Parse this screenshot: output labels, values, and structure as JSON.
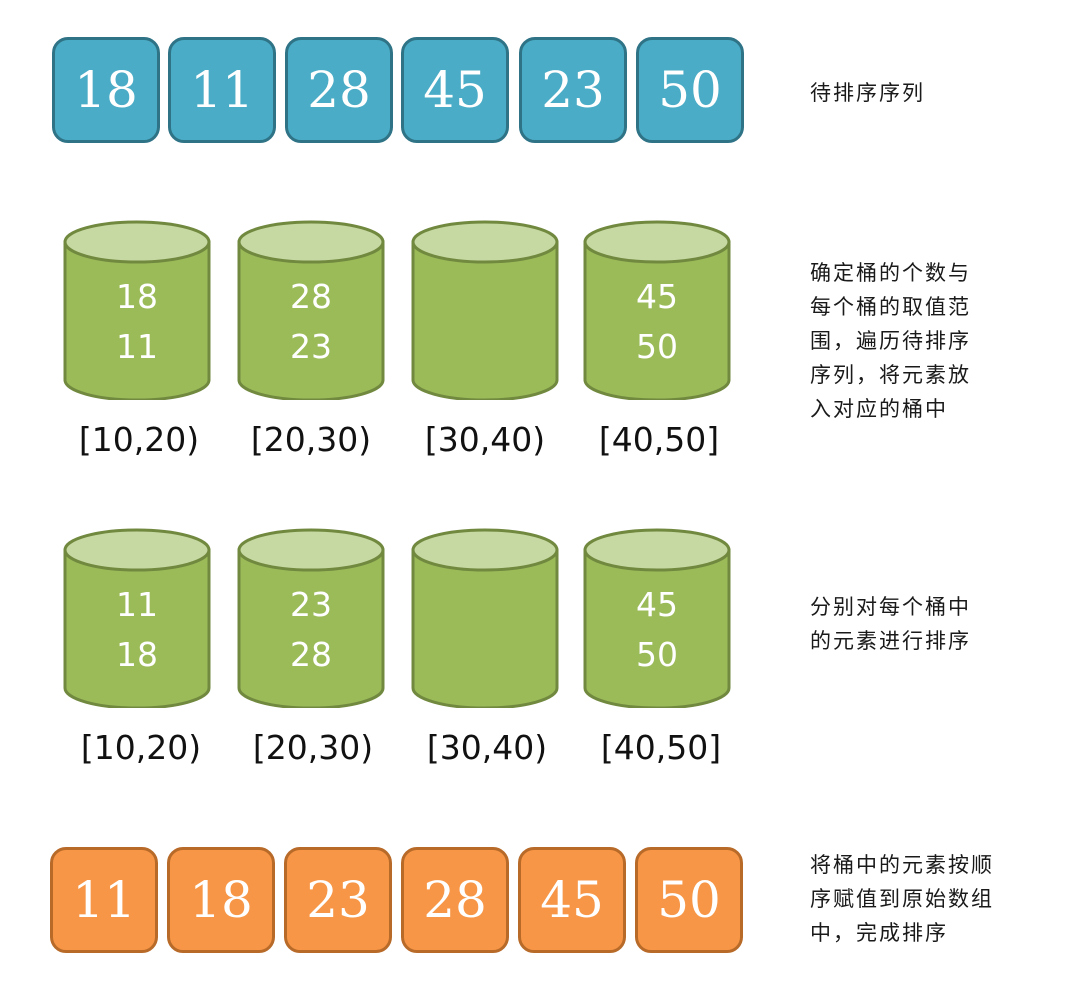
{
  "colors": {
    "input_box_fill": "#4aacc6",
    "input_box_border": "#2f7387",
    "bucket_body": "#9bbb59",
    "bucket_top": "#c6d9a3",
    "bucket_border": "#71893f",
    "output_box_fill": "#f79646",
    "output_box_border": "#b86a29"
  },
  "input_sequence": {
    "values": [
      "18",
      "11",
      "28",
      "45",
      "23",
      "50"
    ],
    "caption": "待排序序列"
  },
  "distribution_step": {
    "buckets": [
      {
        "range": "[10,20)",
        "items": [
          "18",
          "11"
        ]
      },
      {
        "range": "[20,30)",
        "items": [
          "28",
          "23"
        ]
      },
      {
        "range": "[30,40)",
        "items": []
      },
      {
        "range": "[40,50]",
        "items": [
          "45",
          "50"
        ]
      }
    ],
    "caption": "确定桶的个数与\n每个桶的取值范\n围，遍历待排序\n序列，将元素放\n入对应的桶中"
  },
  "sort_step": {
    "buckets": [
      {
        "range": "[10,20)",
        "items": [
          "11",
          "18"
        ]
      },
      {
        "range": "[20,30)",
        "items": [
          "23",
          "28"
        ]
      },
      {
        "range": "[30,40)",
        "items": []
      },
      {
        "range": "[40,50]",
        "items": [
          "45",
          "50"
        ]
      }
    ],
    "caption": "分别对每个桶中\n的元素进行排序"
  },
  "output_sequence": {
    "values": [
      "11",
      "18",
      "23",
      "28",
      "45",
      "50"
    ],
    "caption": "将桶中的元素按顺\n序赋值到原始数组\n中，完成排序"
  }
}
